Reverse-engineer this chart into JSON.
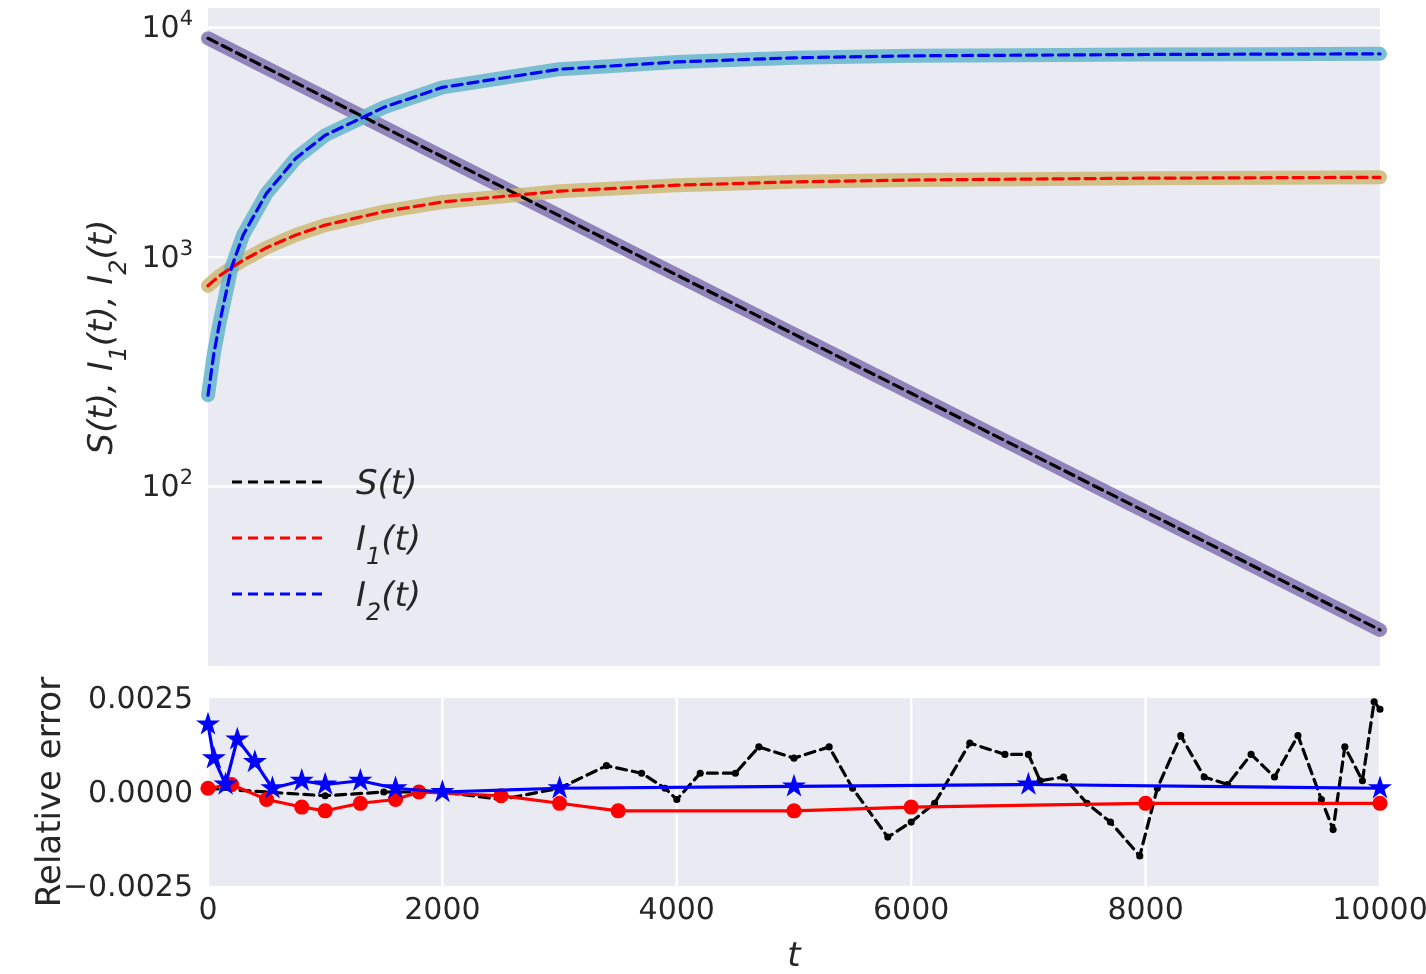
{
  "chart_data": [
    {
      "type": "line",
      "ylabel": "S(t), I$_{1}$(t), I$_{2}$(t)",
      "log": "y",
      "xlim": [
        0,
        10000
      ],
      "xticks": [
        0,
        2000,
        4000,
        6000,
        8000,
        10000
      ],
      "ylim": [
        16.5,
        12200
      ],
      "yticks": [
        {
          "value": 100,
          "label": "10$^{2}$"
        },
        {
          "value": 1000,
          "label": "10$^{3}$"
        },
        {
          "value": 10000,
          "label": "10$^{4}$"
        }
      ],
      "tick_labels": "y",
      "grid": "y",
      "legend": "bottom left",
      "series": [
        {
          "color": "#8172b2",
          "line_style": "solid",
          "x": [
            0,
            2000,
            4000,
            6000,
            8000,
            10000
          ],
          "values": [
            9000,
            2740,
            836,
            255,
            77.6,
            23.7
          ]
        },
        {
          "color": "#ccb974",
          "line_style": "solid",
          "x": [
            0,
            50,
            100,
            200,
            300,
            500,
            750,
            1000,
            1500,
            2000,
            3000,
            4000,
            5000,
            6000,
            8000,
            10000
          ],
          "values": [
            750,
            790,
            830,
            900,
            970,
            1100,
            1250,
            1380,
            1580,
            1740,
            1940,
            2060,
            2130,
            2170,
            2210,
            2230
          ]
        },
        {
          "color": "#64b5cd",
          "line_style": "solid",
          "x": [
            0,
            50,
            100,
            200,
            300,
            500,
            750,
            1000,
            1500,
            2000,
            3000,
            4000,
            5000,
            6000,
            8000,
            10000
          ],
          "values": [
            250,
            380,
            520,
            900,
            1250,
            1900,
            2700,
            3400,
            4500,
            5500,
            6600,
            7100,
            7400,
            7550,
            7650,
            7700
          ]
        },
        {
          "name": "S(t)",
          "color": "#000000",
          "line_style": "dashed",
          "x": [
            0,
            2000,
            4000,
            6000,
            8000,
            10000
          ],
          "values": [
            9000,
            2740,
            836,
            255,
            77.6,
            23.7
          ]
        },
        {
          "name": "I$_{1}$(t)",
          "color": "#ff0000",
          "line_style": "dashed",
          "x": [
            0,
            50,
            100,
            200,
            300,
            500,
            750,
            1000,
            1500,
            2000,
            3000,
            4000,
            5000,
            6000,
            8000,
            10000
          ],
          "values": [
            750,
            790,
            830,
            900,
            970,
            1100,
            1250,
            1380,
            1580,
            1740,
            1940,
            2060,
            2130,
            2170,
            2210,
            2230
          ]
        },
        {
          "name": "I$_{2}$(t)",
          "color": "#0000ff",
          "line_style": "dashed",
          "x": [
            0,
            50,
            100,
            200,
            300,
            500,
            750,
            1000,
            1500,
            2000,
            3000,
            4000,
            5000,
            6000,
            8000,
            10000
          ],
          "values": [
            250,
            380,
            520,
            900,
            1250,
            1900,
            2700,
            3400,
            4500,
            5500,
            6600,
            7100,
            7400,
            7550,
            7650,
            7700
          ]
        }
      ]
    },
    {
      "type": "line",
      "xlabel": "t",
      "ylabel": "Relative error",
      "xlim": [
        0,
        10000
      ],
      "xticks": [
        0,
        2000,
        4000,
        6000,
        8000,
        10000
      ],
      "ylim": [
        -0.0025,
        0.0025
      ],
      "yticks": [
        {
          "value": -0.0025,
          "label": "−0.0025"
        },
        {
          "value": 0,
          "label": "0.0000"
        },
        {
          "value": 0.0025,
          "label": "0.0025"
        }
      ],
      "grid": "x",
      "series": [
        {
          "color": "#000000",
          "line_style": "dashed",
          "marker": "circle",
          "x": [
            0,
            500,
            1000,
            1500,
            2000,
            2500,
            3000,
            3400,
            3700,
            3900,
            4000,
            4200,
            4500,
            4700,
            5000,
            5300,
            5500,
            5800,
            6000,
            6200,
            6500,
            6800,
            7000,
            7100,
            7300,
            7500,
            7700,
            7950,
            8100,
            8300,
            8500,
            8700,
            8900,
            9100,
            9300,
            9500,
            9600,
            9700,
            9850,
            9950,
            10000
          ],
          "values": [
            0.0001,
            null,
            -0.0001,
            0,
            0,
            -0.0002,
            0.0001,
            0.0007,
            0.0005,
            0.0001,
            -0.0002,
            0.0005,
            0.0005,
            0.0012,
            0.0009,
            0.0012,
            0.0001,
            -0.0012,
            -0.0008,
            -0.0003,
            0.0013,
            0.001,
            0.001,
            0.0003,
            0.0004,
            -0.0003,
            -0.0008,
            -0.0017,
            0.0001,
            0.0015,
            0.0004,
            0.0002,
            0.001,
            0.0004,
            0.0015,
            -0.0002,
            -0.001,
            0.0012,
            0.0003,
            0.0024,
            0.0022
          ]
        },
        {
          "color": "#ff0000",
          "line_style": "solid",
          "marker": "circle",
          "x": [
            0,
            200,
            500,
            800,
            1000,
            1300,
            1600,
            1800,
            2500,
            3000,
            3500,
            5000,
            6000,
            8000,
            10000
          ],
          "values": [
            0.0001,
            0.0002,
            -0.0002,
            -0.0004,
            -0.0005,
            -0.0003,
            -0.0002,
            0,
            -0.0001,
            -0.0003,
            -0.0005,
            -0.0005,
            -0.0004,
            -0.0003,
            -0.0003
          ]
        },
        {
          "color": "#0000ff",
          "line_style": "solid",
          "marker": "star",
          "x": [
            0,
            50,
            150,
            250,
            400,
            550,
            800,
            1000,
            1300,
            1600,
            2000,
            3000,
            5000,
            7000,
            10000
          ],
          "values": [
            0.0018,
            0.0009,
            0.0002,
            0.0014,
            0.0008,
            0.0001,
            0.0003,
            0.0002,
            0.0003,
            0.0001,
            0,
            0.0001,
            0.00015,
            0.0002,
            0.0001
          ]
        }
      ]
    }
  ]
}
